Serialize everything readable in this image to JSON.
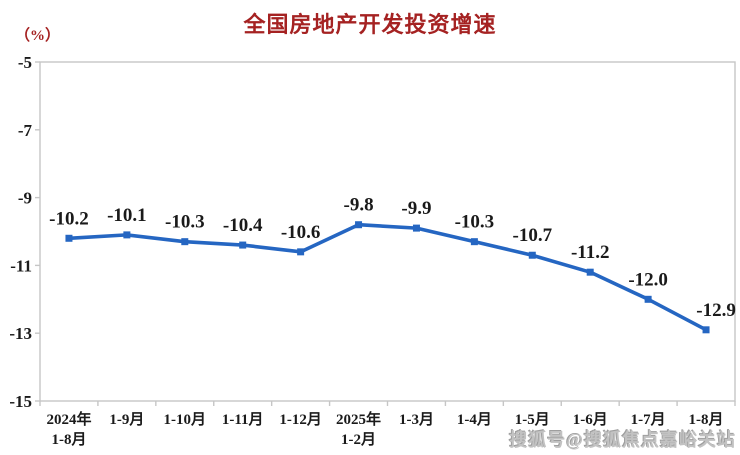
{
  "watermark": "搜狐号@搜狐焦点嘉峪关站",
  "colors": {
    "line": "#2566C2",
    "title": "#A52222",
    "axis": "#C6C6C6",
    "text": "#1A1A1A",
    "watermark": "#C2C2C2",
    "background": "#FFFFFF"
  },
  "chart_data": {
    "type": "line",
    "title": "全国房地产开发投资增速",
    "ylabel": "（%）",
    "xlabel": "",
    "categories": [
      "2024年\n1-8月",
      "1-9月",
      "1-10月",
      "1-11月",
      "1-12月",
      "2025年\n1-2月",
      "1-3月",
      "1-4月",
      "1-5月",
      "1-6月",
      "1-7月",
      "1-8月"
    ],
    "values": [
      -10.2,
      -10.1,
      -10.3,
      -10.4,
      -10.6,
      -9.8,
      -9.9,
      -10.3,
      -10.7,
      -11.2,
      -12.0,
      -12.9
    ],
    "data_labels": [
      "-10.2",
      "-10.1",
      "-10.3",
      "-10.4",
      "-10.6",
      "-9.8",
      "-9.9",
      "-10.3",
      "-10.7",
      "-11.2",
      "-12.0",
      "-12.9"
    ],
    "ylim": [
      -15,
      -5
    ],
    "yticks": [
      -5,
      -7,
      -9,
      -11,
      -13,
      -15
    ],
    "grid": false,
    "legend": "none",
    "marker": "square",
    "series_name": "全国房地产开发投资增速"
  }
}
